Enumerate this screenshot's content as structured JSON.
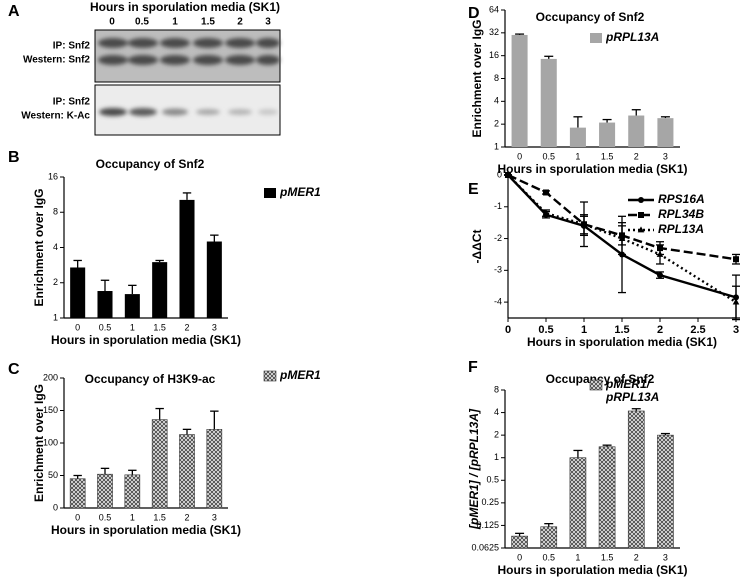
{
  "blot": {
    "panel": "A",
    "title": "Hours in sporulation media (SK1)",
    "lanes": [
      "0",
      "0.5",
      "1",
      "1.5",
      "2",
      "3"
    ],
    "rows": [
      {
        "ip": "IP: Snf2",
        "western": "Western: Snf2"
      },
      {
        "ip": "IP: Snf2",
        "western": "Western: K-Ac"
      }
    ]
  },
  "chart_data": [
    {
      "type": "bar",
      "panel": "B",
      "title": "Occupancy of Snf2",
      "xlabel": "Hours in sporulation media (SK1)",
      "ylabel": "Enrichment over IgG",
      "categories": [
        "0",
        "0.5",
        "1",
        "1.5",
        "2",
        "3"
      ],
      "log_scale": true,
      "ylim": [
        1,
        16
      ],
      "yticks": [
        1,
        2,
        4,
        8,
        16
      ],
      "series": [
        {
          "name": "pMER1",
          "color": "#000000",
          "pattern": "solid",
          "values": [
            2.7,
            1.7,
            1.6,
            3.0,
            10.2,
            4.5
          ],
          "errors": [
            0.4,
            0.4,
            0.3,
            0.1,
            1.5,
            0.6
          ]
        }
      ]
    },
    {
      "type": "bar",
      "panel": "C",
      "title": "Occupancy of H3K9-ac",
      "xlabel": "Hours in sporulation media (SK1)",
      "ylabel": "Enrichment over IgG",
      "categories": [
        "0",
        "0.5",
        "1",
        "1.5",
        "2",
        "3"
      ],
      "log_scale": false,
      "ylim": [
        0,
        200
      ],
      "yticks": [
        0,
        50,
        100,
        150,
        200
      ],
      "series": [
        {
          "name": "pMER1",
          "color": "#555555",
          "pattern": "hatch",
          "values": [
            45,
            52,
            51,
            136,
            113,
            121
          ],
          "errors": [
            5,
            9,
            7,
            17,
            8,
            28
          ]
        }
      ]
    },
    {
      "type": "bar",
      "panel": "D",
      "title": "Occupancy of Snf2",
      "xlabel": "Hours in sporulation media (SK1)",
      "ylabel": "Enrichment over IgG",
      "categories": [
        "0",
        "0.5",
        "1",
        "1.5",
        "2",
        "3"
      ],
      "log_scale": true,
      "ylim": [
        1,
        64
      ],
      "yticks": [
        1,
        2,
        4,
        8,
        16,
        32,
        64
      ],
      "series": [
        {
          "name": "pRPL13A",
          "color": "#a6a6a6",
          "pattern": "solid",
          "values": [
            30,
            14.5,
            1.8,
            2.1,
            2.6,
            2.4
          ],
          "errors": [
            0.8,
            1.2,
            0.7,
            0.2,
            0.5,
            0.1
          ]
        }
      ]
    },
    {
      "type": "line",
      "panel": "E",
      "xlabel": "Hours in sporulation media (SK1)",
      "ylabel": "-ΔΔCt",
      "x": [
        0,
        0.5,
        1,
        1.5,
        2,
        3
      ],
      "xlim": [
        0,
        3
      ],
      "xticks": [
        0,
        0.5,
        1,
        1.5,
        2,
        2.5,
        3
      ],
      "ylim": [
        -4.5,
        0
      ],
      "yticks": [
        0,
        -1,
        -2,
        -3,
        -4
      ],
      "series": [
        {
          "name": "RPS16A",
          "color": "#000000",
          "dash": "solid",
          "marker": "circle",
          "values": [
            0,
            -1.25,
            -1.6,
            -2.5,
            -3.15,
            -3.85
          ],
          "errors": [
            0,
            0.1,
            0.3,
            1.2,
            0.1,
            0.7
          ]
        },
        {
          "name": "RPL34B",
          "color": "#000000",
          "dash": "dashed",
          "marker": "square",
          "values": [
            0,
            -0.55,
            -1.55,
            -1.9,
            -2.3,
            -2.65
          ],
          "errors": [
            0,
            0.05,
            0.3,
            0.3,
            0.2,
            0.15
          ]
        },
        {
          "name": "RPL13A",
          "color": "#000000",
          "dash": "dotted",
          "marker": "triangle",
          "values": [
            0,
            -1.2,
            -1.55,
            -2.0,
            -2.5,
            -4.0
          ],
          "errors": [
            0,
            0.1,
            0.7,
            0.5,
            0.3,
            0.5
          ]
        }
      ]
    },
    {
      "type": "bar",
      "panel": "F",
      "title": "Occupancy of Snf2",
      "xlabel": "Hours in sporulation media (SK1)",
      "ylabel": "[pMER1] / [pRPL13A]",
      "categories": [
        "0",
        "0.5",
        "1",
        "1.5",
        "2",
        "3"
      ],
      "log_scale": true,
      "ylim": [
        0.0625,
        8
      ],
      "yticks": [
        0.0625,
        0.125,
        0.25,
        0.5,
        1,
        2,
        4,
        8
      ],
      "series": [
        {
          "name": "pMER1/\npRPL13A",
          "color": "#555555",
          "pattern": "hatch",
          "values": [
            0.09,
            0.12,
            1.0,
            1.4,
            4.2,
            2.0
          ],
          "errors": [
            0.008,
            0.012,
            0.25,
            0.07,
            0.3,
            0.1
          ]
        }
      ]
    }
  ]
}
